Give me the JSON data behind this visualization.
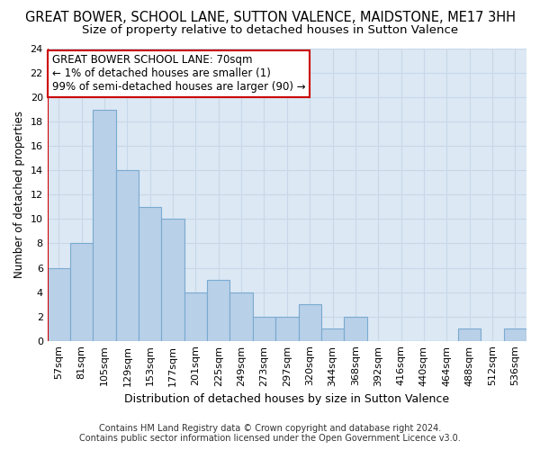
{
  "title": "GREAT BOWER, SCHOOL LANE, SUTTON VALENCE, MAIDSTONE, ME17 3HH",
  "subtitle": "Size of property relative to detached houses in Sutton Valence",
  "xlabel": "Distribution of detached houses by size in Sutton Valence",
  "ylabel": "Number of detached properties",
  "footer_line1": "Contains HM Land Registry data © Crown copyright and database right 2024.",
  "footer_line2": "Contains public sector information licensed under the Open Government Licence v3.0.",
  "bin_labels": [
    "57sqm",
    "81sqm",
    "105sqm",
    "129sqm",
    "153sqm",
    "177sqm",
    "201sqm",
    "225sqm",
    "249sqm",
    "273sqm",
    "297sqm",
    "320sqm",
    "344sqm",
    "368sqm",
    "392sqm",
    "416sqm",
    "440sqm",
    "464sqm",
    "488sqm",
    "512sqm",
    "536sqm"
  ],
  "bar_values": [
    6,
    8,
    19,
    14,
    11,
    10,
    4,
    5,
    4,
    2,
    2,
    3,
    1,
    2,
    0,
    0,
    0,
    0,
    1,
    0,
    1
  ],
  "bar_color": "#b8d0e8",
  "bar_edge_color": "#7aaad0",
  "ylim": [
    0,
    24
  ],
  "yticks": [
    0,
    2,
    4,
    6,
    8,
    10,
    12,
    14,
    16,
    18,
    20,
    22,
    24
  ],
  "grid_color": "#c8d8e8",
  "bg_color": "#dce8f4",
  "annotation_line1": "GREAT BOWER SCHOOL LANE: 70sqm",
  "annotation_line2": "← 1% of detached houses are smaller (1)",
  "annotation_line3": "99% of semi-detached houses are larger (90) →",
  "annotation_box_color": "#ffffff",
  "annotation_box_edge": "#cc0000",
  "marker_line_color": "#cc0000",
  "title_fontsize": 10.5,
  "subtitle_fontsize": 9.5,
  "xlabel_fontsize": 9,
  "ylabel_fontsize": 8.5,
  "tick_fontsize": 8,
  "annotation_fontsize": 8.5,
  "footer_fontsize": 7
}
